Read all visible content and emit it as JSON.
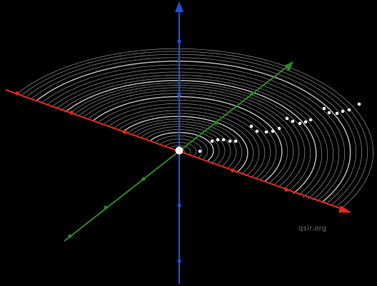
{
  "watermark": "qsir.org",
  "colors": {
    "background": "#000000",
    "z_axis": "#1f4fe0",
    "x_axis": "#e0291d",
    "y_axis": "#2e8a22",
    "surface": "#cfcfcf",
    "points": "#ffffff"
  }
}
